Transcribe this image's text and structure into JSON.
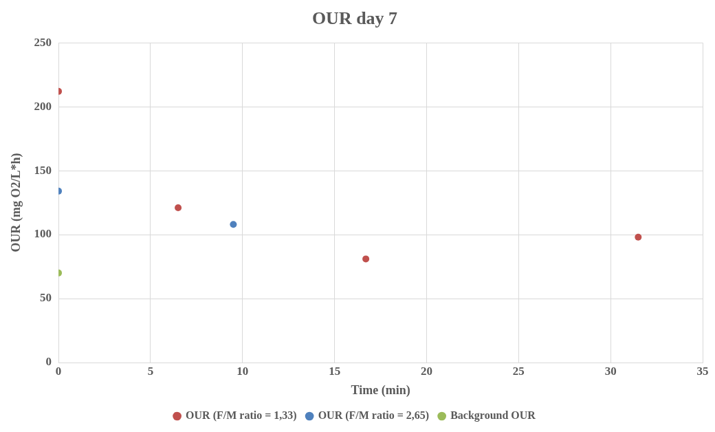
{
  "chart_data": {
    "type": "scatter",
    "title": "OUR day 7",
    "xlabel": "Time (min)",
    "ylabel": "OUR (mg O2/L*h)",
    "series": [
      {
        "name": "OUR (F/M ratio = 1,33)",
        "color": "#c0504d",
        "x": [
          0,
          6.5,
          16.7,
          31.5
        ],
        "values": [
          212,
          121,
          81,
          98
        ]
      },
      {
        "name": "OUR (F/M ratio = 2,65)",
        "color": "#4f81bd",
        "x": [
          0,
          9.5
        ],
        "values": [
          134,
          108
        ]
      },
      {
        "name": "Background OUR",
        "color": "#9bbb59",
        "x": [
          0
        ],
        "values": [
          70
        ]
      }
    ],
    "xlim": [
      0,
      35
    ],
    "xticks": [
      0,
      5,
      10,
      15,
      20,
      25,
      30,
      35
    ],
    "ylim": [
      0,
      250
    ],
    "yticks": [
      0,
      50,
      100,
      150,
      200,
      250
    ],
    "grid": true,
    "legend": "bottom",
    "marker": "circle"
  }
}
